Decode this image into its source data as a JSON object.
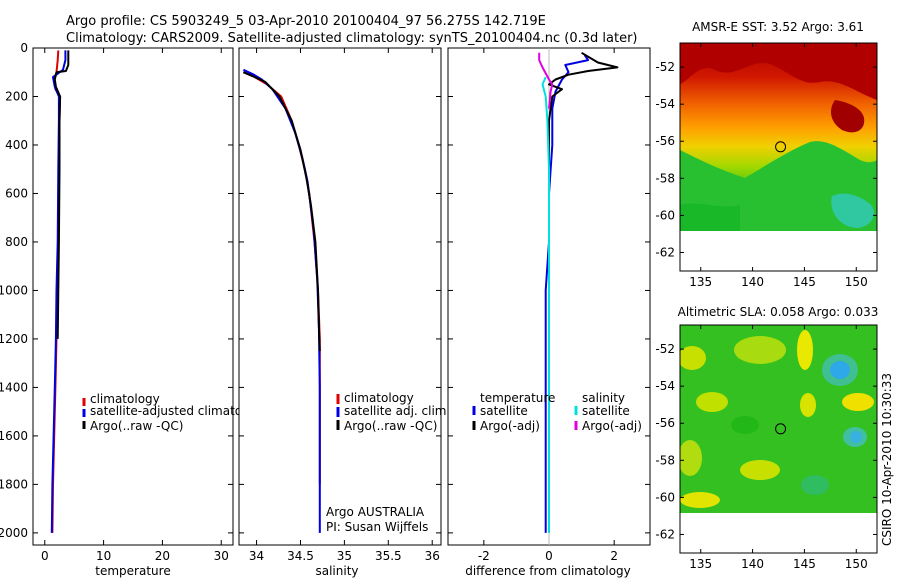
{
  "header": {
    "line1": "Argo profile: CS 5903249_5 03-Apr-2010 20100404_97 56.275S 142.719E",
    "line2": "Climatology: CARS2009. Satellite-adjusted climatology: synTS_20100404.nc (0.3d later)"
  },
  "colors": {
    "red": "#e00000",
    "blue": "#0000e0",
    "black": "#000000",
    "cyan": "#00e0e0",
    "magenta": "#e000e0"
  },
  "chart_data": [
    {
      "type": "line",
      "id": "temperature",
      "xlabel": "temperature",
      "xlim": [
        -2,
        32
      ],
      "ylim": [
        0,
        2050
      ],
      "y_reversed": true,
      "xticks": [
        "0",
        "10",
        "20",
        "30"
      ],
      "xtick_values": [
        0,
        10,
        20,
        30
      ],
      "yticks": [
        "0",
        "200",
        "400",
        "600",
        "800",
        "1000",
        "1200",
        "1400",
        "1600",
        "1800",
        "2000"
      ],
      "ytick_values": [
        0,
        200,
        400,
        600,
        800,
        1000,
        1200,
        1400,
        1600,
        1800,
        2000
      ],
      "legend": [
        "climatology",
        "satellite-adjusted climatology",
        "Argo(..raw -QC)"
      ],
      "series": [
        {
          "name": "climatology",
          "color": "red",
          "x": [
            2.3,
            2.2,
            2.0,
            1.6,
            1.8,
            2.6,
            2.5,
            2.4,
            2.3,
            2.2,
            2.0,
            1.8,
            1.6,
            1.4,
            1.3
          ],
          "y": [
            10,
            50,
            100,
            130,
            170,
            200,
            300,
            500,
            800,
            1000,
            1200,
            1400,
            1600,
            1800,
            2000
          ]
        },
        {
          "name": "satellite-adjusted climatology",
          "color": "blue",
          "x": [
            3.5,
            3.5,
            3.1,
            1.4,
            1.7,
            2.4,
            2.4,
            2.3,
            2.2,
            2.0,
            1.9,
            1.7,
            1.5,
            1.3,
            1.2
          ],
          "y": [
            10,
            50,
            90,
            120,
            160,
            200,
            300,
            500,
            800,
            1000,
            1200,
            1400,
            1600,
            1800,
            2000
          ]
        },
        {
          "name": "Argo(..raw -QC)",
          "color": "black",
          "x": [
            4.0,
            4.0,
            3.6,
            2.0,
            1.7,
            1.9,
            2.6,
            2.5,
            2.5,
            2.4,
            2.3,
            2.2
          ],
          "y": [
            10,
            70,
            95,
            100,
            130,
            160,
            200,
            300,
            500,
            800,
            1000,
            1200
          ]
        }
      ]
    },
    {
      "type": "line",
      "id": "salinity",
      "xlabel": "salinity",
      "xlim": [
        33.8,
        36.1
      ],
      "ylim": [
        0,
        2050
      ],
      "y_reversed": true,
      "xticks": [
        "34",
        "34.5",
        "35",
        "35.5",
        "36"
      ],
      "xtick_values": [
        34,
        34.5,
        35,
        35.5,
        36
      ],
      "legend": [
        "climatology",
        "satellite adj. clim.",
        "Argo(..raw -QC)"
      ],
      "annotation": [
        "Argo AUSTRALIA",
        "PI: Susan Wijffels"
      ],
      "series": [
        {
          "name": "climatology",
          "color": "red",
          "x": [
            33.85,
            33.98,
            34.12,
            34.28,
            34.4,
            34.48,
            34.55,
            34.6,
            34.66,
            34.7,
            34.72,
            34.72,
            34.72,
            34.72
          ],
          "y": [
            100,
            120,
            150,
            200,
            300,
            400,
            500,
            600,
            800,
            1000,
            1200,
            1400,
            1600,
            1800
          ]
        },
        {
          "name": "satellite adj. clim.",
          "color": "blue",
          "x": [
            33.85,
            33.97,
            34.06,
            34.18,
            34.33,
            34.44,
            34.52,
            34.58,
            34.65,
            34.69,
            34.71,
            34.72,
            34.72,
            34.72,
            34.72
          ],
          "y": [
            90,
            110,
            130,
            170,
            250,
            350,
            450,
            550,
            750,
            950,
            1150,
            1400,
            1600,
            1800,
            2000
          ]
        },
        {
          "name": "Argo(..raw -QC)",
          "color": "black",
          "x": [
            33.85,
            33.95,
            34.1,
            34.26,
            34.4,
            34.5,
            34.57,
            34.62,
            34.67,
            34.7,
            34.71,
            34.72
          ],
          "y": [
            100,
            115,
            140,
            200,
            300,
            420,
            540,
            650,
            800,
            1000,
            1150,
            1250
          ]
        }
      ]
    },
    {
      "type": "line",
      "id": "difference",
      "xlabel": "difference from climatology",
      "xlim": [
        -3.1,
        3.1
      ],
      "ylim": [
        0,
        2050
      ],
      "y_reversed": true,
      "xticks": [
        "-2",
        "0",
        "2"
      ],
      "xtick_values": [
        -2,
        0,
        2
      ],
      "legend_left_title": "temperature",
      "legend_left": [
        "satellite",
        "Argo(-adj)"
      ],
      "legend_right_title": "salinity",
      "legend_right": [
        "satellite",
        "Argo(-adj)"
      ],
      "series": [
        {
          "name": "temperature satellite",
          "color": "blue",
          "x": [
            1.1,
            1.2,
            0.5,
            0.6,
            0.4,
            0.2,
            0.1,
            0.1,
            0.0,
            0.0,
            -0.1,
            -0.1,
            -0.1,
            -0.1,
            -0.1
          ],
          "y": [
            30,
            50,
            70,
            100,
            130,
            180,
            250,
            400,
            600,
            800,
            1000,
            1200,
            1400,
            1600,
            2000
          ]
        },
        {
          "name": "temperature Argo(-adj)",
          "color": "black",
          "x": [
            1.0,
            1.5,
            2.1,
            1.2,
            0.6,
            0.2,
            0.0,
            0.4,
            0.1,
            0.0,
            0.0,
            0.0
          ],
          "y": [
            20,
            60,
            80,
            95,
            110,
            130,
            150,
            170,
            200,
            300,
            500,
            800
          ]
        },
        {
          "name": "salinity satellite",
          "color": "cyan",
          "x": [
            -0.1,
            -0.2,
            -0.1,
            -0.05,
            0.0,
            0.0,
            0.0,
            0.0,
            0.0,
            0.0
          ],
          "y": [
            120,
            150,
            200,
            300,
            500,
            800,
            1000,
            1400,
            1800,
            2000
          ]
        },
        {
          "name": "salinity Argo(-adj)",
          "color": "magenta",
          "x": [
            -0.3,
            -0.3,
            -0.2,
            0.0,
            0.1,
            0.05,
            0.0
          ],
          "y": [
            20,
            50,
            80,
            130,
            150,
            180,
            250
          ]
        }
      ]
    }
  ],
  "maps": [
    {
      "title": "AMSR-E SST: 3.52 Argo: 3.61",
      "xticks": [
        "135",
        "140",
        "145",
        "150"
      ],
      "xtick_values": [
        135,
        140,
        145,
        150
      ],
      "yticks": [
        "-52",
        "-54",
        "-56",
        "-58",
        "-60",
        "-62"
      ],
      "ytick_values": [
        -52,
        -54,
        -56,
        -58,
        -60,
        -62
      ],
      "lon_range": [
        133,
        152
      ],
      "lat_range": [
        -63,
        -50.7
      ],
      "data_lat_min": -60,
      "float_lon": 142.7,
      "float_lat": -56.3
    },
    {
      "title": "Altimetric SLA: 0.058 Argo: 0.033",
      "xticks": [
        "135",
        "140",
        "145",
        "150"
      ],
      "xtick_values": [
        135,
        140,
        145,
        150
      ],
      "yticks": [
        "-52",
        "-54",
        "-56",
        "-58",
        "-60",
        "-62"
      ],
      "ytick_values": [
        -52,
        -54,
        -56,
        -58,
        -60,
        -62
      ],
      "lon_range": [
        133,
        152
      ],
      "lat_range": [
        -63,
        -50.7
      ],
      "data_lat_min": -60,
      "float_lon": 142.7,
      "float_lat": -56.3
    }
  ],
  "footer": {
    "stamp": "CSIRO 10-Apr-2010 10:30:33"
  }
}
